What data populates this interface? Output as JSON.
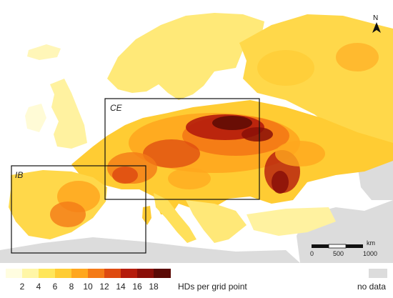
{
  "map": {
    "regions": [
      {
        "id": "CE",
        "label": "CE"
      },
      {
        "id": "IB",
        "label": "IB"
      }
    ],
    "north_label": "N",
    "scale_bar": {
      "ticks": [
        "0",
        "500",
        "1000"
      ],
      "unit": "km"
    }
  },
  "legend": {
    "tick_labels": [
      "2",
      "4",
      "6",
      "8",
      "10",
      "12",
      "14",
      "16",
      "18"
    ],
    "unit_label": "HDs per grid point",
    "no_data_label": "no data",
    "colors": [
      "#fffde0",
      "#fff6a6",
      "#ffe65a",
      "#ffcc33",
      "#ffa71e",
      "#f47a16",
      "#de4a10",
      "#b51c0c",
      "#8a0f08",
      "#5a0a05"
    ],
    "no_data_color": "#dcdcdc"
  }
}
